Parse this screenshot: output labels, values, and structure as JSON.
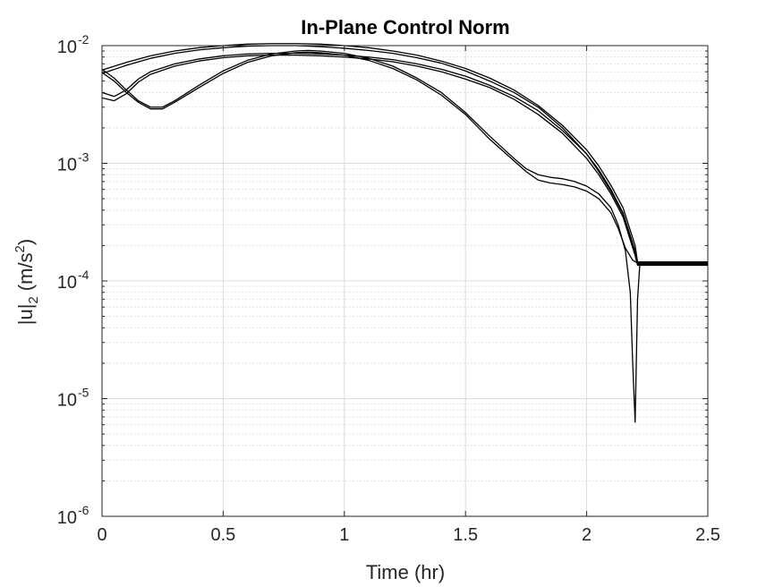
{
  "chart_data": {
    "type": "line",
    "title": "In-Plane Control Norm",
    "xlabel": "Time (hr)",
    "ylabel": "|u|",
    "ylabel_sub": "2",
    "ylabel_unit": "(m/s",
    "ylabel_unit_sup": "2",
    "ylabel_unit_close": ")",
    "xscale": "linear",
    "yscale": "log",
    "xlim": [
      0,
      2.5
    ],
    "ylim": [
      1e-06,
      0.01
    ],
    "grid": true,
    "minor_grid_y": true,
    "xticks": [
      0,
      0.5,
      1,
      1.5,
      2,
      2.5
    ],
    "xtick_labels": [
      "0",
      "0.5",
      "1",
      "1.5",
      "2",
      "2.5"
    ],
    "yticks": [
      1e-06,
      1e-05,
      0.0001,
      0.001,
      0.01
    ],
    "ytick_labels": [
      {
        "base": "10",
        "exp": "-6"
      },
      {
        "base": "10",
        "exp": "-5"
      },
      {
        "base": "10",
        "exp": "-4"
      },
      {
        "base": "10",
        "exp": "-3"
      },
      {
        "base": "10",
        "exp": "-2"
      }
    ],
    "line_color": "#000000",
    "series": [
      {
        "x": [
          0,
          0.1,
          0.2,
          0.3,
          0.4,
          0.5,
          0.6,
          0.7,
          0.8,
          0.9,
          1.0,
          1.1,
          1.2,
          1.3,
          1.4,
          1.5,
          1.6,
          1.7,
          1.8,
          1.9,
          2.0,
          2.05,
          2.1,
          2.15,
          2.2,
          2.21,
          2.22,
          2.5
        ],
        "y": [
          0.0062,
          0.0072,
          0.0082,
          0.009,
          0.0096,
          0.01,
          0.0103,
          0.0104,
          0.0104,
          0.0103,
          0.01,
          0.0096,
          0.009,
          0.0083,
          0.0074,
          0.0064,
          0.0053,
          0.0042,
          0.0031,
          0.0021,
          0.0013,
          0.00095,
          0.00065,
          0.00042,
          0.0002,
          0.000145,
          0.000145,
          0.000145
        ]
      },
      {
        "x": [
          0,
          0.1,
          0.2,
          0.3,
          0.4,
          0.5,
          0.6,
          0.7,
          0.8,
          0.9,
          1.0,
          1.1,
          1.2,
          1.3,
          1.4,
          1.5,
          1.6,
          1.7,
          1.8,
          1.9,
          2.0,
          2.05,
          2.1,
          2.15,
          2.2,
          2.21,
          2.22,
          2.5
        ],
        "y": [
          0.0058,
          0.0068,
          0.0078,
          0.0086,
          0.0092,
          0.0096,
          0.0099,
          0.01,
          0.01,
          0.0098,
          0.0095,
          0.0091,
          0.0086,
          0.0079,
          0.0071,
          0.0061,
          0.005,
          0.004,
          0.003,
          0.002,
          0.0012,
          0.00088,
          0.0006,
          0.00038,
          0.00018,
          0.00014,
          0.00014,
          0.00014
        ]
      },
      {
        "x": [
          0,
          0.05,
          0.1,
          0.15,
          0.2,
          0.3,
          0.4,
          0.5,
          0.6,
          0.7,
          0.8,
          0.9,
          1.0,
          1.1,
          1.2,
          1.3,
          1.4,
          1.5,
          1.6,
          1.7,
          1.8,
          1.9,
          2.0,
          2.05,
          2.1,
          2.15,
          2.2,
          2.21,
          2.22,
          2.5
        ],
        "y": [
          0.004,
          0.0037,
          0.0042,
          0.0052,
          0.006,
          0.007,
          0.0077,
          0.0082,
          0.0085,
          0.0086,
          0.0086,
          0.0085,
          0.0083,
          0.008,
          0.0076,
          0.007,
          0.0063,
          0.0055,
          0.0046,
          0.0037,
          0.0028,
          0.0019,
          0.0012,
          0.00085,
          0.00058,
          0.00037,
          0.00017,
          0.000138,
          0.000138,
          0.000138
        ]
      },
      {
        "x": [
          0,
          0.05,
          0.1,
          0.15,
          0.2,
          0.3,
          0.4,
          0.5,
          0.6,
          0.7,
          0.8,
          0.9,
          1.0,
          1.1,
          1.2,
          1.3,
          1.4,
          1.5,
          1.6,
          1.7,
          1.8,
          1.9,
          2.0,
          2.05,
          2.1,
          2.15,
          2.2,
          2.21,
          2.22,
          2.5
        ],
        "y": [
          0.0036,
          0.0034,
          0.0039,
          0.0049,
          0.0057,
          0.0067,
          0.0074,
          0.0079,
          0.0082,
          0.0083,
          0.0083,
          0.0082,
          0.008,
          0.0077,
          0.0073,
          0.0067,
          0.006,
          0.0052,
          0.0044,
          0.0035,
          0.0026,
          0.0018,
          0.0011,
          0.0008,
          0.00055,
          0.00035,
          0.000165,
          0.000136,
          0.000136,
          0.000136
        ]
      },
      {
        "x": [
          0,
          0.05,
          0.1,
          0.15,
          0.2,
          0.25,
          0.3,
          0.4,
          0.5,
          0.6,
          0.7,
          0.8,
          0.85,
          0.9,
          1.0,
          1.1,
          1.2,
          1.3,
          1.4,
          1.5,
          1.6,
          1.7,
          1.75,
          1.8,
          1.85,
          1.9,
          1.95,
          2.0,
          2.05,
          2.1,
          2.13,
          2.16,
          2.18,
          2.19,
          2.2,
          2.21,
          2.22,
          2.5
        ],
        "y": [
          0.0063,
          0.0053,
          0.0042,
          0.0034,
          0.003,
          0.003,
          0.0034,
          0.0046,
          0.0061,
          0.0075,
          0.0085,
          0.009,
          0.0091,
          0.009,
          0.0086,
          0.0078,
          0.0067,
          0.0053,
          0.004,
          0.0027,
          0.0017,
          0.0011,
          0.0009,
          0.0008,
          0.00076,
          0.00074,
          0.0007,
          0.00064,
          0.00055,
          0.00042,
          0.0003,
          0.00018,
          8e-05,
          2e-05,
          6.3e-06,
          7e-05,
          0.000145,
          0.000145
        ]
      },
      {
        "x": [
          0,
          0.05,
          0.1,
          0.15,
          0.2,
          0.25,
          0.3,
          0.4,
          0.5,
          0.6,
          0.7,
          0.8,
          0.85,
          0.9,
          1.0,
          1.1,
          1.2,
          1.3,
          1.4,
          1.5,
          1.6,
          1.7,
          1.75,
          1.8,
          1.85,
          1.9,
          1.95,
          2.0,
          2.05,
          2.1,
          2.13,
          2.16,
          2.19,
          2.21,
          2.22,
          2.5
        ],
        "y": [
          0.0059,
          0.005,
          0.004,
          0.0033,
          0.0029,
          0.0029,
          0.0033,
          0.0044,
          0.0058,
          0.0072,
          0.0082,
          0.0087,
          0.0088,
          0.0087,
          0.0083,
          0.0075,
          0.0064,
          0.0051,
          0.0038,
          0.0026,
          0.0016,
          0.00105,
          0.00085,
          0.00072,
          0.00068,
          0.00066,
          0.00063,
          0.00058,
          0.0005,
          0.00038,
          0.00028,
          0.00019,
          0.00015,
          0.000142,
          0.000142,
          0.000142
        ]
      }
    ]
  }
}
